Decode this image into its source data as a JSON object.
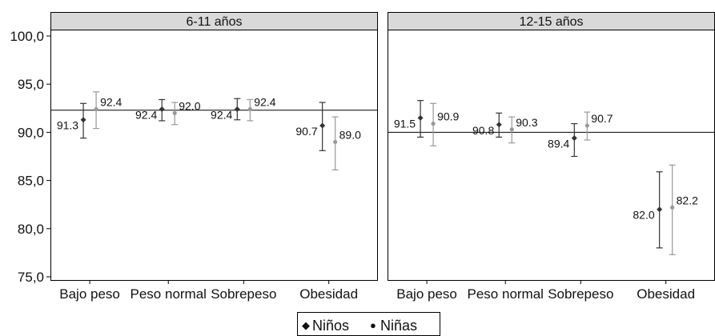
{
  "chart_data": {
    "type": "scatter",
    "subtype": "point-with-error-bars",
    "categories": [
      "Bajo peso",
      "Peso normal",
      "Sobrepeso",
      "Obesidad"
    ],
    "y_tick_labels": [
      "75,0",
      "80,0",
      "85,0",
      "90,0",
      "95,0",
      "100,0"
    ],
    "ylim": [
      75,
      100
    ],
    "grid": false,
    "legend": {
      "position": "bottom-center",
      "entries": [
        {
          "marker": "◆",
          "label": "Niños",
          "color": "#333333"
        },
        {
          "marker": "●",
          "label": "Niñas",
          "color": "#999999"
        }
      ]
    },
    "panels": [
      {
        "title": "6-11 años",
        "reference_line": 92.3,
        "series": [
          {
            "name": "Niños",
            "color": "#333333",
            "values": [
              91.3,
              92.4,
              92.4,
              90.7
            ],
            "labels": [
              "91.3",
              "92.4",
              "92.4",
              "90.7"
            ],
            "lower": [
              89.4,
              91.2,
              91.3,
              88.1
            ],
            "upper": [
              93.0,
              93.4,
              93.5,
              93.1
            ]
          },
          {
            "name": "Niñas",
            "color": "#999999",
            "values": [
              92.4,
              92.0,
              92.4,
              89.0
            ],
            "labels": [
              "92.4",
              "92.0",
              "92.4",
              "89.0"
            ],
            "lower": [
              90.4,
              90.8,
              91.2,
              86.1
            ],
            "upper": [
              94.2,
              93.1,
              93.4,
              91.6
            ]
          }
        ]
      },
      {
        "title": "12-15 años",
        "reference_line": 90.0,
        "series": [
          {
            "name": "Niños",
            "color": "#333333",
            "values": [
              91.5,
              90.8,
              89.4,
              82.0
            ],
            "labels": [
              "91.5",
              "90.8",
              "89.4",
              "82.0"
            ],
            "lower": [
              89.5,
              89.5,
              87.5,
              78.0
            ],
            "upper": [
              93.3,
              92.0,
              90.9,
              85.9
            ]
          },
          {
            "name": "Niñas",
            "color": "#999999",
            "values": [
              90.9,
              90.3,
              90.7,
              82.2
            ],
            "labels": [
              "90.9",
              "90.3",
              "90.7",
              "82.2"
            ],
            "lower": [
              88.6,
              88.9,
              89.2,
              77.3
            ],
            "upper": [
              93.0,
              91.6,
              92.1,
              86.6
            ]
          }
        ]
      }
    ]
  }
}
